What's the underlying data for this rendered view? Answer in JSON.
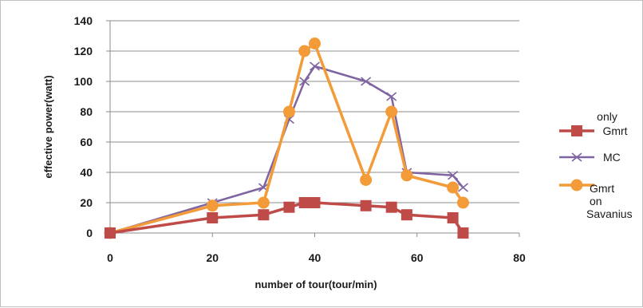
{
  "chart_data": {
    "type": "line",
    "title": "",
    "xlabel": "number of tour(tour/min)",
    "ylabel": "effective power(watt)",
    "xlim": [
      0,
      80
    ],
    "ylim": [
      0,
      140
    ],
    "x_ticks": [
      "0",
      "20",
      "40",
      "60",
      "80"
    ],
    "y_ticks": [
      "0",
      "20",
      "40",
      "60",
      "80",
      "100",
      "120",
      "140"
    ],
    "grid": "horizontal",
    "legend_position": "right",
    "series": [
      {
        "name": "only Gmrt",
        "legend_lines": [
          "only",
          "Gmrt"
        ],
        "color": "#be4b48",
        "marker": "square",
        "x": [
          0,
          20,
          30,
          35,
          38,
          40,
          50,
          55,
          58,
          67,
          69
        ],
        "y": [
          0,
          10,
          12,
          17,
          20,
          20,
          18,
          17,
          12,
          10,
          0
        ]
      },
      {
        "name": "MC",
        "legend_lines": [
          "MC"
        ],
        "color": "#7e64a0",
        "marker": "x",
        "x": [
          0,
          20,
          30,
          35,
          38,
          40,
          50,
          55,
          58,
          67,
          69
        ],
        "y": [
          0,
          20,
          30,
          75,
          100,
          110,
          100,
          90,
          40,
          38,
          30
        ]
      },
      {
        "name": "Gmrt on Savanius",
        "legend_lines": [
          "Gmrt",
          "on",
          "Savanius"
        ],
        "color": "#f29b38",
        "marker": "circle",
        "x": [
          0,
          20,
          30,
          35,
          38,
          40,
          50,
          55,
          58,
          67,
          69
        ],
        "y": [
          0,
          18,
          20,
          80,
          120,
          125,
          35,
          80,
          38,
          30,
          20
        ]
      }
    ]
  }
}
